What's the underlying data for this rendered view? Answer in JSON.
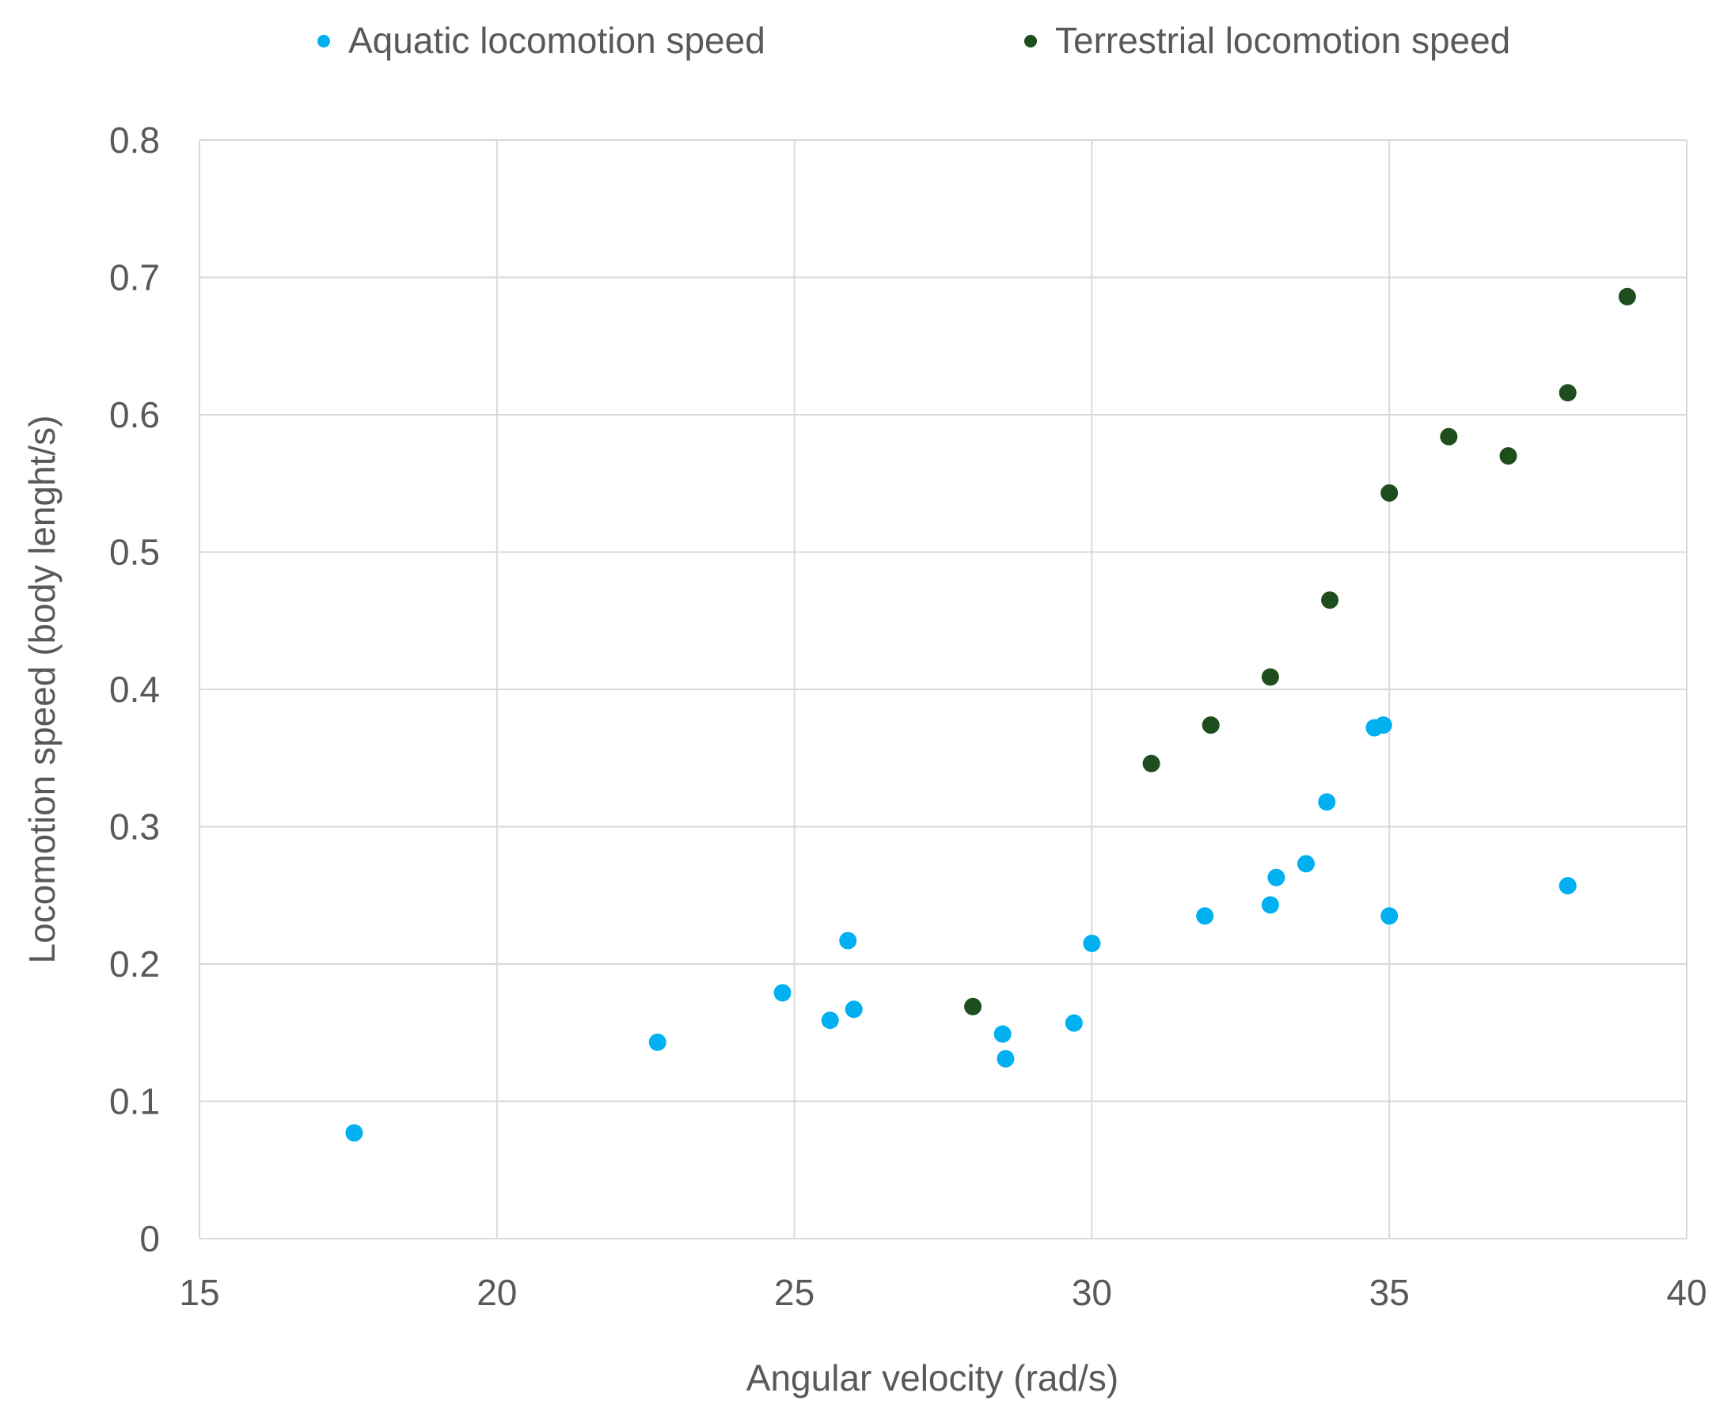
{
  "chart_data": {
    "type": "scatter",
    "title": "",
    "xlabel": "Angular velocity (rad/s)",
    "ylabel": "Locomotion  speed (body lenght/s)",
    "xlim": [
      15,
      40
    ],
    "ylim": [
      0,
      0.8
    ],
    "x_ticks": [
      "15",
      "20",
      "25",
      "30",
      "35",
      "40"
    ],
    "y_ticks": [
      "0",
      "0.1",
      "0.2",
      "0.3",
      "0.4",
      "0.5",
      "0.6",
      "0.7",
      "0.8"
    ],
    "grid": true,
    "legend_position": "top",
    "series": [
      {
        "name": "Aquatic locomotion speed",
        "color": "#00b0f0",
        "points": [
          [
            17.6,
            0.077
          ],
          [
            22.7,
            0.143
          ],
          [
            24.8,
            0.179
          ],
          [
            25.6,
            0.159
          ],
          [
            25.9,
            0.217
          ],
          [
            26.0,
            0.167
          ],
          [
            28.5,
            0.149
          ],
          [
            28.55,
            0.131
          ],
          [
            29.7,
            0.157
          ],
          [
            30.0,
            0.215
          ],
          [
            31.9,
            0.235
          ],
          [
            33.0,
            0.243
          ],
          [
            33.1,
            0.263
          ],
          [
            33.6,
            0.273
          ],
          [
            33.95,
            0.318
          ],
          [
            34.75,
            0.372
          ],
          [
            34.9,
            0.374
          ],
          [
            35.0,
            0.235
          ],
          [
            38.0,
            0.257
          ]
        ]
      },
      {
        "name": "Terrestrial locomotion speed",
        "color": "#1e4d1e",
        "points": [
          [
            28.0,
            0.169
          ],
          [
            31.0,
            0.346
          ],
          [
            32.0,
            0.374
          ],
          [
            33.0,
            0.409
          ],
          [
            34.0,
            0.465
          ],
          [
            35.0,
            0.543
          ],
          [
            36.0,
            0.584
          ],
          [
            37.0,
            0.57
          ],
          [
            38.0,
            0.616
          ],
          [
            39.0,
            0.686
          ]
        ]
      }
    ]
  }
}
